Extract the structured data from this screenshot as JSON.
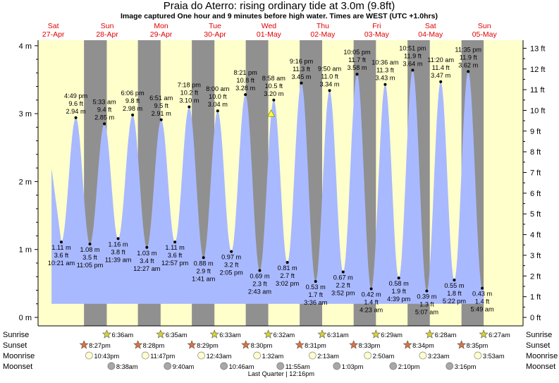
{
  "header": {
    "title": "Praia do Aterro: rising  ordinary tide at 3.0m (9.8ft)",
    "subtitle": "Image captured One hour and 9 minutes before high water. Times are WEST (UTC +1.0hrs)"
  },
  "colors": {
    "day": "#ffffcc",
    "night": "#909090",
    "tide": "#a9b9ff",
    "sunrise": "#d8d230",
    "sunset": "#e07040",
    "moonrise": "#ffffcc",
    "moonset": "#a8a8a8",
    "day_label": "#e00000"
  },
  "chart_data": {
    "type": "area",
    "title": "Praia do Aterro: rising  ordinary tide at 3.0m (9.8ft)",
    "x_range_hours": [
      0,
      216
    ],
    "y_range_m": [
      -0.15,
      4.2
    ],
    "days": [
      {
        "name": "Sat",
        "date": "27-Apr"
      },
      {
        "name": "Sun",
        "date": "28-Apr"
      },
      {
        "name": "Mon",
        "date": "29-Apr"
      },
      {
        "name": "Tue",
        "date": "30-Apr"
      },
      {
        "name": "Wed",
        "date": "01-May"
      },
      {
        "name": "Thu",
        "date": "02-May"
      },
      {
        "name": "Fri",
        "date": "03-May"
      },
      {
        "name": "Sat",
        "date": "04-May"
      },
      {
        "name": "Sun",
        "date": "05-May"
      }
    ],
    "left_ticks": [
      "0 m",
      "1 m",
      "2 m",
      "3 m",
      "4 m"
    ],
    "right_ticks": [
      "0 ft",
      "1 ft",
      "2 ft",
      "3 ft",
      "4 ft",
      "5 ft",
      "6 ft",
      "7 ft",
      "8 ft",
      "9 ft",
      "10 ft",
      "11 ft",
      "12 ft",
      "13 ft"
    ],
    "extremes": [
      {
        "type": "low",
        "time": "10:21 am",
        "m": 1.11,
        "m_label": "1.11 m",
        "ft_label": "3.6 ft",
        "hour": 10.35
      },
      {
        "type": "high",
        "time": "4:49 pm",
        "m": 2.94,
        "m_label": "2.94 m",
        "ft_label": "9.6 ft",
        "hour": 16.82
      },
      {
        "type": "low",
        "time": "11:05 pm",
        "m": 1.08,
        "m_label": "1.08 m",
        "ft_label": "3.5 ft",
        "hour": 23.08
      },
      {
        "type": "high",
        "time": "5:33 am",
        "m": 2.85,
        "m_label": "2.85 m",
        "ft_label": "9.4 ft",
        "hour": 29.55
      },
      {
        "type": "low",
        "time": "11:39 am",
        "m": 1.16,
        "m_label": "1.16 m",
        "ft_label": "3.8 ft",
        "hour": 35.65
      },
      {
        "type": "high",
        "time": "6:06 pm",
        "m": 2.98,
        "m_label": "2.98 m",
        "ft_label": "9.8 ft",
        "hour": 42.1
      },
      {
        "type": "low",
        "time": "12:27 am",
        "m": 1.03,
        "m_label": "1.03 m",
        "ft_label": "3.4 ft",
        "hour": 48.45
      },
      {
        "type": "high",
        "time": "6:51 am",
        "m": 2.91,
        "m_label": "2.91 m",
        "ft_label": "9.5 ft",
        "hour": 54.85
      },
      {
        "type": "low",
        "time": "12:57 pm",
        "m": 1.11,
        "m_label": "1.11 m",
        "ft_label": "3.6 ft",
        "hour": 60.95
      },
      {
        "type": "high",
        "time": "7:18 pm",
        "m": 3.1,
        "m_label": "3.10 m",
        "ft_label": "10.2 ft",
        "hour": 67.3
      },
      {
        "type": "low",
        "time": "1:41 am",
        "m": 0.88,
        "m_label": "0.88 m",
        "ft_label": "2.9 ft",
        "hour": 73.68
      },
      {
        "type": "high",
        "time": "8:00 am",
        "m": 3.04,
        "m_label": "3.04 m",
        "ft_label": "10.0 ft",
        "hour": 80.0
      },
      {
        "type": "low",
        "time": "2:05 pm",
        "m": 0.97,
        "m_label": "0.97 m",
        "ft_label": "3.2 ft",
        "hour": 86.08
      },
      {
        "type": "high",
        "time": "8:21 pm",
        "m": 3.28,
        "m_label": "3.28 m",
        "ft_label": "10.8 ft",
        "hour": 92.35
      },
      {
        "type": "low",
        "time": "2:43 am",
        "m": 0.69,
        "m_label": "0.69 m",
        "ft_label": "2.3 ft",
        "hour": 98.72
      },
      {
        "type": "high",
        "time": "8:58 am",
        "m": 3.2,
        "m_label": "3.20 m",
        "ft_label": "10.5 ft",
        "hour": 104.97
      },
      {
        "type": "low",
        "time": "3:02 pm",
        "m": 0.81,
        "m_label": "0.81 m",
        "ft_label": "2.7 ft",
        "hour": 111.03
      },
      {
        "type": "high",
        "time": "9:16 pm",
        "m": 3.45,
        "m_label": "3.45 m",
        "ft_label": "11.3 ft",
        "hour": 117.27
      },
      {
        "type": "low",
        "time": "3:36 am",
        "m": 0.53,
        "m_label": "0.53 m",
        "ft_label": "1.7 ft",
        "hour": 123.6
      },
      {
        "type": "high",
        "time": "9:50 am",
        "m": 3.34,
        "m_label": "3.34 m",
        "ft_label": "11.0 ft",
        "hour": 129.83
      },
      {
        "type": "low",
        "time": "3:52 pm",
        "m": 0.67,
        "m_label": "0.67 m",
        "ft_label": "2.2 ft",
        "hour": 135.87
      },
      {
        "type": "high",
        "time": "10:05 pm",
        "m": 3.58,
        "m_label": "3.58 m",
        "ft_label": "11.7 ft",
        "hour": 142.08
      },
      {
        "type": "low",
        "time": "4:23 am",
        "m": 0.42,
        "m_label": "0.42 m",
        "ft_label": "1.4 ft",
        "hour": 148.38
      },
      {
        "type": "high",
        "time": "10:36 am",
        "m": 3.43,
        "m_label": "3.43 m",
        "ft_label": "11.3 ft",
        "hour": 154.6
      },
      {
        "type": "low",
        "time": "4:39 pm",
        "m": 0.58,
        "m_label": "0.58 m",
        "ft_label": "1.9 ft",
        "hour": 160.65
      },
      {
        "type": "high",
        "time": "10:51 pm",
        "m": 3.64,
        "m_label": "3.64 m",
        "ft_label": "11.9 ft",
        "hour": 166.85
      },
      {
        "type": "low",
        "time": "5:07 am",
        "m": 0.39,
        "m_label": "0.39 m",
        "ft_label": "1.3 ft",
        "hour": 173.12
      },
      {
        "type": "high",
        "time": "11:20 am",
        "m": 3.47,
        "m_label": "3.47 m",
        "ft_label": "11.4 ft",
        "hour": 179.33
      },
      {
        "type": "low",
        "time": "5:22 pm",
        "m": 0.55,
        "m_label": "0.55 m",
        "ft_label": "1.8 ft",
        "hour": 185.37
      },
      {
        "type": "high",
        "time": "11:35 pm",
        "m": 3.62,
        "m_label": "3.62 m",
        "ft_label": "11.9 ft",
        "hour": 191.58
      },
      {
        "type": "low",
        "time": "5:49 am",
        "m": 0.43,
        "m_label": "0.43 m",
        "ft_label": "1.4 ft",
        "hour": 197.82
      }
    ],
    "current": {
      "hour": 103.8,
      "m": 3.0,
      "label": "rising  ordinary tide at 3.0m (9.8ft)"
    },
    "sun": [
      {
        "sunrise": "6:36am",
        "sunset": "8:27pm",
        "rise_hour": 30.6,
        "set_hour": 20.45
      },
      {
        "sunrise": "6:35am",
        "sunset": "8:28pm",
        "rise_hour": 54.58,
        "set_hour": 44.47
      },
      {
        "sunrise": "6:33am",
        "sunset": "8:29pm",
        "rise_hour": 78.55,
        "set_hour": 68.48
      },
      {
        "sunrise": "6:32am",
        "sunset": "8:30pm",
        "rise_hour": 102.53,
        "set_hour": 92.5
      },
      {
        "sunrise": "6:31am",
        "sunset": "8:31pm",
        "rise_hour": 126.52,
        "set_hour": 116.52
      },
      {
        "sunrise": "6:29am",
        "sunset": "8:33pm",
        "rise_hour": 150.48,
        "set_hour": 140.55
      },
      {
        "sunrise": "6:28am",
        "sunset": "8:34pm",
        "rise_hour": 174.47,
        "set_hour": 164.57
      },
      {
        "sunrise": "6:27am",
        "sunset": "8:35pm",
        "rise_hour": 198.45,
        "set_hour": 188.58
      }
    ],
    "night_start_hour": 20.45,
    "night_bands_hours": [
      [
        20.45,
        30.6
      ],
      [
        44.47,
        54.58
      ],
      [
        68.48,
        78.55
      ],
      [
        92.5,
        102.53
      ],
      [
        116.52,
        126.52
      ],
      [
        140.55,
        150.48
      ],
      [
        164.57,
        174.47
      ],
      [
        188.58,
        198.45
      ]
    ],
    "moonrise": [
      {
        "label": "10:43pm",
        "hour": 22.72
      },
      {
        "label": "11:47pm",
        "hour": 47.78
      },
      {
        "label": "12:43am",
        "hour": 72.72
      },
      {
        "label": "1:32am",
        "hour": 97.53
      },
      {
        "label": "2:13am",
        "hour": 122.22
      },
      {
        "label": "2:50am",
        "hour": 146.83
      },
      {
        "label": "3:23am",
        "hour": 171.38
      },
      {
        "label": "3:53am",
        "hour": 195.88
      }
    ],
    "moonset": [
      {
        "label": "8:38am",
        "hour": 32.63
      },
      {
        "label": "9:40am",
        "hour": 57.67
      },
      {
        "label": "10:46am",
        "hour": 82.77
      },
      {
        "label": "11:55am",
        "hour": 107.92
      },
      {
        "label": "1:03pm",
        "hour": 133.05
      },
      {
        "label": "2:10pm",
        "hour": 158.17
      },
      {
        "label": "3:16pm",
        "hour": 183.27
      }
    ],
    "row_labels": [
      "Sunrise",
      "Sunset",
      "Moonrise",
      "Moonset"
    ],
    "moon_phase": {
      "label": "Last Quarter | 12:16pm",
      "hour": 108.27
    }
  }
}
